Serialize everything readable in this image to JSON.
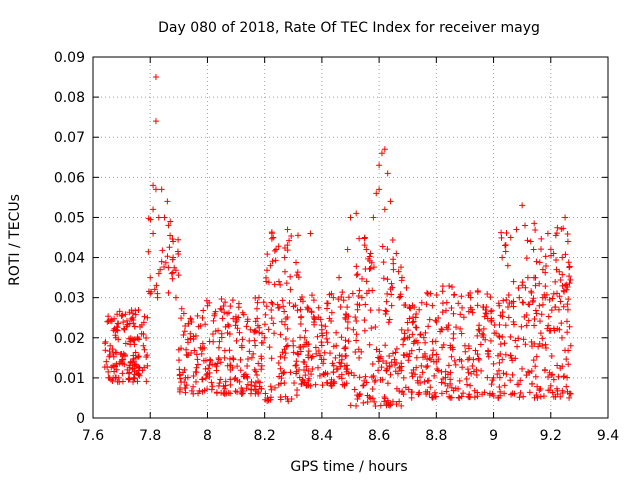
{
  "chart_data": {
    "type": "scatter",
    "title": "Day 080 of 2018, Rate Of TEC Index for receiver mayg",
    "xlabel": "GPS time / hours",
    "ylabel": "ROTI / TECUs",
    "xlim": [
      7.6,
      9.4
    ],
    "ylim": [
      0,
      0.09
    ],
    "xticks": [
      7.6,
      7.8,
      8,
      8.2,
      8.4,
      8.6,
      8.8,
      9,
      9.2,
      9.4
    ],
    "xtick_labels": [
      "7.6",
      "7.8",
      "8",
      "8.2",
      "8.4",
      "8.6",
      "8.8",
      "9",
      "9.2",
      "9.4"
    ],
    "yticks": [
      0,
      0.01,
      0.02,
      0.03,
      0.04,
      0.05,
      0.06,
      0.07,
      0.08,
      0.09
    ],
    "ytick_labels": [
      "0",
      "0.01",
      "0.02",
      "0.03",
      "0.04",
      "0.05",
      "0.06",
      "0.07",
      "0.08",
      "0.09"
    ],
    "grid": true,
    "marker": "+",
    "color": "#ff0000",
    "series": [
      {
        "name": "ROTI",
        "points": [
          [
            7.65,
            0.024
          ],
          [
            7.66,
            0.018
          ],
          [
            7.67,
            0.013
          ],
          [
            7.68,
            0.02
          ],
          [
            7.69,
            0.01
          ],
          [
            7.7,
            0.016
          ],
          [
            7.71,
            0.022
          ],
          [
            7.72,
            0.012
          ],
          [
            7.73,
            0.019
          ],
          [
            7.74,
            0.026
          ],
          [
            7.75,
            0.015
          ],
          [
            7.76,
            0.011
          ],
          [
            7.77,
            0.021
          ],
          [
            7.78,
            0.017
          ],
          [
            7.79,
            0.013
          ],
          [
            7.79,
            0.025
          ],
          [
            7.8,
            0.031
          ],
          [
            7.8,
            0.035
          ],
          [
            7.81,
            0.046
          ],
          [
            7.81,
            0.052
          ],
          [
            7.81,
            0.058
          ],
          [
            7.82,
            0.074
          ],
          [
            7.82,
            0.085
          ],
          [
            7.82,
            0.057
          ],
          [
            7.83,
            0.05
          ],
          [
            7.83,
            0.036
          ],
          [
            7.84,
            0.039
          ],
          [
            7.84,
            0.057
          ],
          [
            7.85,
            0.05
          ],
          [
            7.86,
            0.054
          ],
          [
            7.87,
            0.049
          ],
          [
            7.88,
            0.04
          ],
          [
            7.88,
            0.044
          ],
          [
            7.89,
            0.03
          ],
          [
            7.9,
            0.017
          ],
          [
            7.92,
            0.012
          ],
          [
            7.94,
            0.021
          ],
          [
            7.96,
            0.009
          ],
          [
            7.98,
            0.016
          ],
          [
            8.0,
            0.028
          ],
          [
            8.0,
            0.011
          ],
          [
            8.02,
            0.019
          ],
          [
            8.04,
            0.008
          ],
          [
            8.05,
            0.027
          ],
          [
            8.06,
            0.015
          ],
          [
            8.08,
            0.012
          ],
          [
            8.1,
            0.024
          ],
          [
            8.12,
            0.018
          ],
          [
            8.14,
            0.01
          ],
          [
            8.15,
            0.022
          ],
          [
            8.16,
            0.016
          ],
          [
            8.18,
            0.03
          ],
          [
            8.19,
            0.013
          ],
          [
            8.2,
            0.02
          ],
          [
            8.21,
            0.005
          ],
          [
            8.22,
            0.038
          ],
          [
            8.23,
            0.045
          ],
          [
            8.24,
            0.042
          ],
          [
            8.25,
            0.034
          ],
          [
            8.26,
            0.024
          ],
          [
            8.27,
            0.04
          ],
          [
            8.28,
            0.047
          ],
          [
            8.29,
            0.032
          ],
          [
            8.3,
            0.018
          ],
          [
            8.32,
            0.012
          ],
          [
            8.34,
            0.02
          ],
          [
            8.35,
            0.027
          ],
          [
            8.36,
            0.046
          ],
          [
            8.38,
            0.016
          ],
          [
            8.4,
            0.022
          ],
          [
            8.42,
            0.011
          ],
          [
            8.44,
            0.03
          ],
          [
            8.45,
            0.018
          ],
          [
            8.46,
            0.035
          ],
          [
            8.48,
            0.013
          ],
          [
            8.49,
            0.042
          ],
          [
            8.5,
            0.05
          ],
          [
            8.51,
            0.022
          ],
          [
            8.52,
            0.051
          ],
          [
            8.53,
            0.015
          ],
          [
            8.54,
            0.03
          ],
          [
            8.55,
            0.045
          ],
          [
            8.56,
            0.004
          ],
          [
            8.57,
            0.041
          ],
          [
            8.58,
            0.05
          ],
          [
            8.59,
            0.056
          ],
          [
            8.6,
            0.057
          ],
          [
            8.6,
            0.063
          ],
          [
            8.61,
            0.066
          ],
          [
            8.62,
            0.067
          ],
          [
            8.62,
            0.052
          ],
          [
            8.63,
            0.061
          ],
          [
            8.64,
            0.054
          ],
          [
            8.65,
            0.037
          ],
          [
            8.66,
            0.041
          ],
          [
            8.68,
            0.035
          ],
          [
            8.7,
            0.02
          ],
          [
            8.72,
            0.012
          ],
          [
            8.74,
            0.027
          ],
          [
            8.76,
            0.016
          ],
          [
            8.78,
            0.031
          ],
          [
            8.8,
            0.014
          ],
          [
            8.82,
            0.022
          ],
          [
            8.84,
            0.008
          ],
          [
            8.86,
            0.026
          ],
          [
            8.88,
            0.005
          ],
          [
            8.9,
            0.018
          ],
          [
            8.92,
            0.03
          ],
          [
            8.94,
            0.012
          ],
          [
            8.96,
            0.021
          ],
          [
            8.98,
            0.016
          ],
          [
            9.0,
            0.01
          ],
          [
            9.02,
            0.028
          ],
          [
            9.03,
            0.04
          ],
          [
            9.04,
            0.043
          ],
          [
            9.05,
            0.038
          ],
          [
            9.06,
            0.045
          ],
          [
            9.07,
            0.034
          ],
          [
            9.08,
            0.047
          ],
          [
            9.09,
            0.03
          ],
          [
            9.1,
            0.053
          ],
          [
            9.11,
            0.048
          ],
          [
            9.12,
            0.035
          ],
          [
            9.13,
            0.044
          ],
          [
            9.14,
            0.042
          ],
          [
            9.15,
            0.039
          ],
          [
            9.16,
            0.028
          ],
          [
            9.17,
            0.018
          ],
          [
            9.18,
            0.012
          ],
          [
            9.19,
            0.046
          ],
          [
            9.2,
            0.008
          ],
          [
            9.21,
            0.041
          ],
          [
            9.22,
            0.037
          ],
          [
            9.23,
            0.022
          ],
          [
            9.24,
            0.04
          ],
          [
            9.25,
            0.05
          ],
          [
            9.25,
            0.033
          ],
          [
            9.26,
            0.044
          ],
          [
            9.26,
            0.027
          ],
          [
            9.27,
            0.018
          ],
          [
            9.27,
            0.006
          ]
        ]
      }
    ],
    "extra_density_bands": [
      {
        "x_range": [
          7.64,
          7.79
        ],
        "y_range": [
          0.009,
          0.027
        ],
        "count": 140
      },
      {
        "x_range": [
          7.79,
          7.9
        ],
        "y_range": [
          0.03,
          0.05
        ],
        "count": 30
      },
      {
        "x_range": [
          7.9,
          8.2
        ],
        "y_range": [
          0.006,
          0.03
        ],
        "count": 230
      },
      {
        "x_range": [
          8.2,
          8.32
        ],
        "y_range": [
          0.004,
          0.048
        ],
        "count": 100
      },
      {
        "x_range": [
          8.32,
          8.5
        ],
        "y_range": [
          0.008,
          0.032
        ],
        "count": 150
      },
      {
        "x_range": [
          8.5,
          8.68
        ],
        "y_range": [
          0.003,
          0.045
        ],
        "count": 150
      },
      {
        "x_range": [
          8.68,
          9.0
        ],
        "y_range": [
          0.005,
          0.033
        ],
        "count": 240
      },
      {
        "x_range": [
          9.0,
          9.27
        ],
        "y_range": [
          0.005,
          0.03
        ],
        "count": 170
      },
      {
        "x_range": [
          9.02,
          9.27
        ],
        "y_range": [
          0.03,
          0.05
        ],
        "count": 60
      }
    ]
  }
}
